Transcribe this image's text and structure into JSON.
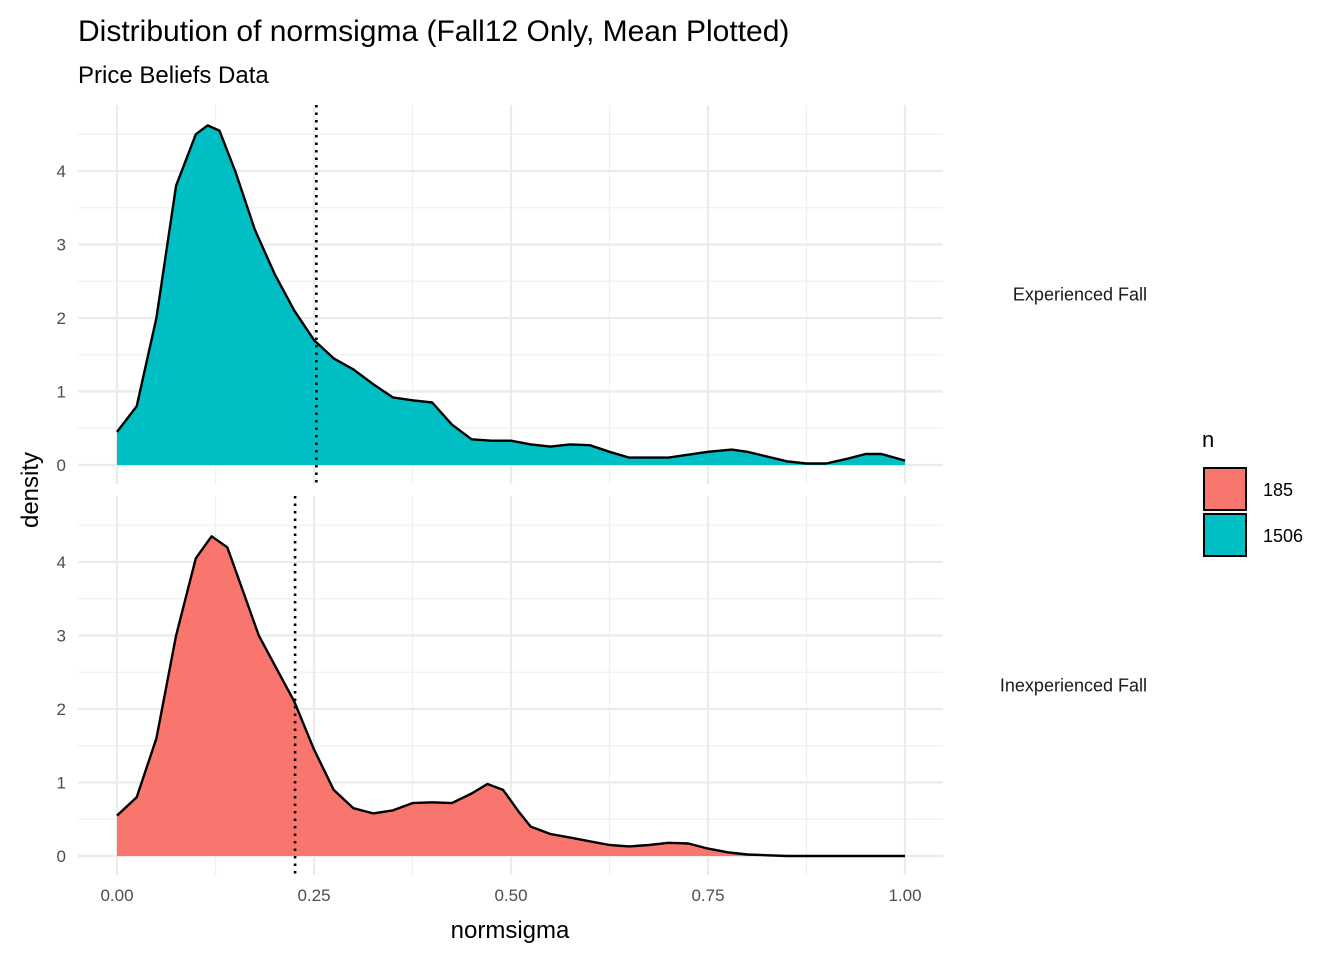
{
  "chart_data": {
    "type": "area",
    "title": "Distribution of normsigma (Fall12 Only, Mean Plotted)",
    "subtitle": "Price Beliefs Data",
    "xlabel": "normsigma",
    "ylabel": "density",
    "xlim": [
      0,
      1
    ],
    "ylim": [
      0,
      4.8
    ],
    "x_ticks": [
      "0.00",
      "0.25",
      "0.50",
      "0.75",
      "1.00"
    ],
    "y_ticks": [
      "0",
      "1",
      "2",
      "3",
      "4"
    ],
    "grid": true,
    "legend": {
      "title": "n",
      "position": "right",
      "entries": [
        {
          "label": "185",
          "color": "#F8766D"
        },
        {
          "label": "1506",
          "color": "#00BFC4"
        }
      ]
    },
    "panels": [
      {
        "strip_label": "Experienced Fall",
        "n": "1506",
        "color": "#00BFC4",
        "mean": 0.253,
        "x": [
          0.0,
          0.025,
          0.05,
          0.075,
          0.1,
          0.115,
          0.13,
          0.15,
          0.175,
          0.2,
          0.225,
          0.25,
          0.275,
          0.3,
          0.325,
          0.35,
          0.375,
          0.4,
          0.425,
          0.45,
          0.475,
          0.5,
          0.525,
          0.55,
          0.575,
          0.6,
          0.625,
          0.65,
          0.7,
          0.75,
          0.78,
          0.8,
          0.85,
          0.875,
          0.9,
          0.925,
          0.95,
          0.97,
          1.0
        ],
        "y": [
          0.45,
          0.8,
          2.0,
          3.8,
          4.5,
          4.62,
          4.55,
          4.0,
          3.2,
          2.6,
          2.1,
          1.7,
          1.45,
          1.3,
          1.1,
          0.92,
          0.88,
          0.85,
          0.55,
          0.35,
          0.33,
          0.33,
          0.28,
          0.25,
          0.28,
          0.27,
          0.18,
          0.1,
          0.1,
          0.18,
          0.21,
          0.18,
          0.05,
          0.02,
          0.02,
          0.08,
          0.15,
          0.15,
          0.06
        ]
      },
      {
        "strip_label": "Inexperienced Fall",
        "n": "185",
        "color": "#F8766D",
        "mean": 0.226,
        "x": [
          0.0,
          0.025,
          0.05,
          0.075,
          0.1,
          0.12,
          0.14,
          0.16,
          0.18,
          0.2,
          0.225,
          0.25,
          0.275,
          0.3,
          0.325,
          0.35,
          0.375,
          0.4,
          0.425,
          0.45,
          0.47,
          0.49,
          0.51,
          0.525,
          0.55,
          0.575,
          0.6,
          0.625,
          0.65,
          0.675,
          0.7,
          0.725,
          0.75,
          0.775,
          0.8,
          0.85,
          0.9,
          1.0
        ],
        "y": [
          0.55,
          0.8,
          1.6,
          3.0,
          4.05,
          4.35,
          4.2,
          3.6,
          3.0,
          2.6,
          2.1,
          1.45,
          0.9,
          0.65,
          0.58,
          0.62,
          0.72,
          0.73,
          0.72,
          0.85,
          0.98,
          0.9,
          0.6,
          0.4,
          0.3,
          0.25,
          0.2,
          0.15,
          0.13,
          0.15,
          0.18,
          0.17,
          0.1,
          0.05,
          0.02,
          0.0,
          0.0,
          0.0
        ]
      }
    ]
  }
}
